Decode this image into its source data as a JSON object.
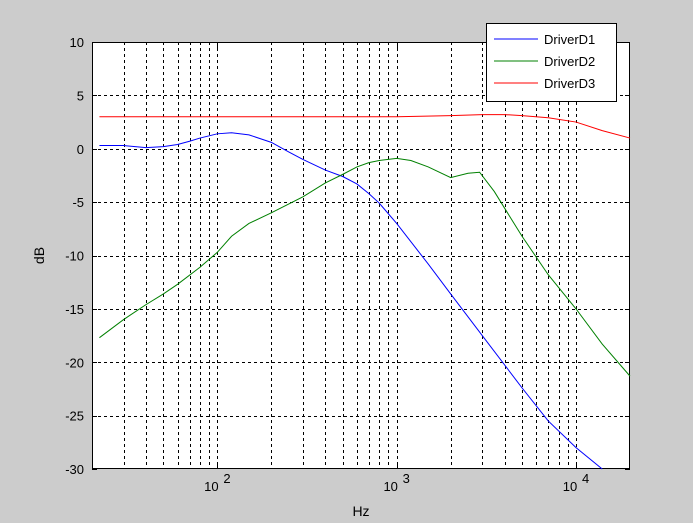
{
  "window": {
    "background": "#cccccc"
  },
  "chart_data": {
    "type": "line",
    "xscale": "log",
    "xlim": [
      20,
      20000
    ],
    "ylim": [
      -30,
      10
    ],
    "grid": true,
    "xlabel": "Hz",
    "ylabel": "dB",
    "xticks": [
      100,
      1000,
      10000
    ],
    "xtick_labels": [
      {
        "base": "10",
        "exp": "2"
      },
      {
        "base": "10",
        "exp": "3"
      },
      {
        "base": "10",
        "exp": "4"
      }
    ],
    "yticks": [
      10,
      5,
      0,
      -5,
      -10,
      -15,
      -20,
      -25,
      -30
    ],
    "ytick_labels": [
      "10",
      "5",
      "0",
      "-5",
      "-10",
      "-15",
      "-20",
      "-25",
      "-30"
    ],
    "legend_position": "top-right",
    "series": [
      {
        "name": "DriverD1",
        "color": "#0000ff",
        "x": [
          22,
          30,
          40,
          50,
          60,
          70,
          80,
          100,
          120,
          150,
          200,
          250,
          300,
          400,
          500,
          600,
          700,
          800,
          1000,
          1500,
          2000,
          3000,
          5000,
          7000,
          10000,
          14000
        ],
        "y": [
          0.3,
          0.3,
          0.1,
          0.2,
          0.4,
          0.7,
          1.0,
          1.4,
          1.5,
          1.3,
          0.6,
          -0.3,
          -1.0,
          -2.0,
          -2.6,
          -3.3,
          -4.2,
          -5.1,
          -7.0,
          -10.8,
          -13.6,
          -17.5,
          -22.4,
          -25.5,
          -28.0,
          -30.0
        ]
      },
      {
        "name": "DriverD2",
        "color": "#008000",
        "x": [
          22,
          30,
          40,
          50,
          60,
          80,
          100,
          120,
          150,
          200,
          300,
          400,
          500,
          600,
          700,
          800,
          1000,
          1200,
          1500,
          2000,
          2500,
          2900,
          3500,
          5000,
          7000,
          10000,
          14000,
          20000
        ],
        "y": [
          -17.7,
          -16.0,
          -14.6,
          -13.6,
          -12.7,
          -11.1,
          -9.7,
          -8.2,
          -7.0,
          -6.0,
          -4.5,
          -3.2,
          -2.4,
          -1.7,
          -1.3,
          -1.1,
          -0.9,
          -1.1,
          -1.7,
          -2.7,
          -2.3,
          -2.2,
          -4.0,
          -8.2,
          -11.8,
          -15.0,
          -18.3,
          -21.3
        ]
      },
      {
        "name": "DriverD3",
        "color": "#ff0000",
        "x": [
          22,
          100,
          500,
          1000,
          2000,
          3000,
          4000,
          5000,
          7000,
          10000,
          14000,
          20000
        ],
        "y": [
          3.0,
          3.0,
          3.0,
          3.0,
          3.1,
          3.2,
          3.2,
          3.1,
          2.9,
          2.5,
          1.7,
          1.0
        ]
      }
    ]
  }
}
